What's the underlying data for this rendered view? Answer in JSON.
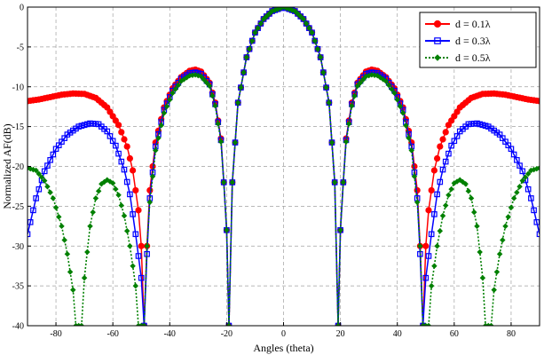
{
  "chart_data": {
    "type": "line",
    "xlabel": "Angles (theta)",
    "ylabel": "Normalized AF(dB)",
    "xlim": [
      -90,
      90
    ],
    "ylim": [
      -40,
      0
    ],
    "xticks": [
      -80,
      -60,
      -40,
      -20,
      0,
      20,
      40,
      60,
      80
    ],
    "yticks": [
      0,
      -5,
      -10,
      -15,
      -20,
      -25,
      -30,
      -35,
      -40
    ],
    "grid": true,
    "legend_position": "top-right",
    "series": [
      {
        "name": "d = 0.1λ",
        "color": "#ff0000",
        "marker": "filled-circle",
        "line": "solid",
        "points": [
          [
            -90,
            -11.8
          ],
          [
            -86,
            -11.6
          ],
          [
            -82,
            -11.3
          ],
          [
            -78,
            -11.0
          ],
          [
            -74,
            -10.85
          ],
          [
            -70,
            -10.9
          ],
          [
            -66,
            -11.4
          ],
          [
            -62,
            -12.6
          ],
          [
            -58,
            -14.8
          ],
          [
            -55,
            -17.5
          ],
          [
            -53,
            -20.5
          ],
          [
            -51,
            -25.5
          ],
          [
            -50,
            -30
          ],
          [
            -49,
            -40
          ],
          [
            -48,
            -30
          ],
          [
            -47,
            -23
          ],
          [
            -45,
            -17
          ],
          [
            -42,
            -12.6
          ],
          [
            -39,
            -10.2
          ],
          [
            -36,
            -8.8
          ],
          [
            -33,
            -8.0
          ],
          [
            -31,
            -7.85
          ],
          [
            -29,
            -8.1
          ],
          [
            -26,
            -9.5
          ],
          [
            -24,
            -12.0
          ],
          [
            -22,
            -16.5
          ],
          [
            -21,
            -22
          ],
          [
            -20,
            -28
          ],
          [
            -19.2,
            -40
          ],
          [
            -18,
            -22
          ],
          [
            -16,
            -12
          ],
          [
            -13,
            -6.3
          ],
          [
            -10,
            -3.2
          ],
          [
            -7,
            -1.5
          ],
          [
            -4,
            -0.5
          ],
          [
            0,
            0
          ],
          [
            4,
            -0.5
          ],
          [
            7,
            -1.5
          ],
          [
            10,
            -3.2
          ],
          [
            13,
            -6.3
          ],
          [
            16,
            -12
          ],
          [
            18,
            -22
          ],
          [
            19.2,
            -40
          ],
          [
            20,
            -28
          ],
          [
            21,
            -22
          ],
          [
            22,
            -16.5
          ],
          [
            24,
            -12.0
          ],
          [
            26,
            -9.5
          ],
          [
            29,
            -8.1
          ],
          [
            31,
            -7.85
          ],
          [
            33,
            -8.0
          ],
          [
            36,
            -8.8
          ],
          [
            39,
            -10.2
          ],
          [
            42,
            -12.6
          ],
          [
            45,
            -17
          ],
          [
            47,
            -23
          ],
          [
            48,
            -30
          ],
          [
            49,
            -40
          ],
          [
            50,
            -30
          ],
          [
            51,
            -25.5
          ],
          [
            53,
            -20.5
          ],
          [
            55,
            -17.5
          ],
          [
            58,
            -14.8
          ],
          [
            62,
            -12.6
          ],
          [
            66,
            -11.4
          ],
          [
            70,
            -10.9
          ],
          [
            74,
            -10.85
          ],
          [
            78,
            -11.0
          ],
          [
            82,
            -11.3
          ],
          [
            86,
            -11.6
          ],
          [
            90,
            -11.8
          ]
        ]
      },
      {
        "name": "d = 0.3λ",
        "color": "#0000ff",
        "marker": "open-square",
        "line": "solid",
        "points": [
          [
            -90,
            -28.5
          ],
          [
            -87,
            -24
          ],
          [
            -84,
            -20.6
          ],
          [
            -80,
            -17.8
          ],
          [
            -76,
            -16.0
          ],
          [
            -72,
            -15.0
          ],
          [
            -68,
            -14.6
          ],
          [
            -65,
            -14.7
          ],
          [
            -62,
            -15.6
          ],
          [
            -59,
            -17.4
          ],
          [
            -56,
            -20.4
          ],
          [
            -54,
            -23.5
          ],
          [
            -52,
            -28.5
          ],
          [
            -50,
            -34
          ],
          [
            -49,
            -40
          ],
          [
            -48,
            -31
          ],
          [
            -47,
            -24
          ],
          [
            -45,
            -17.5
          ],
          [
            -42,
            -12.9
          ],
          [
            -39,
            -10.5
          ],
          [
            -36,
            -9.0
          ],
          [
            -33,
            -8.3
          ],
          [
            -31,
            -8.2
          ],
          [
            -29,
            -8.4
          ],
          [
            -26,
            -9.7
          ],
          [
            -24,
            -12.2
          ],
          [
            -22,
            -16.7
          ],
          [
            -21,
            -22
          ],
          [
            -20,
            -28
          ],
          [
            -19.2,
            -40
          ],
          [
            -18,
            -22
          ],
          [
            -16,
            -12
          ],
          [
            -13,
            -6.3
          ],
          [
            -10,
            -3.2
          ],
          [
            -7,
            -1.5
          ],
          [
            -4,
            -0.5
          ],
          [
            0,
            0
          ],
          [
            4,
            -0.5
          ],
          [
            7,
            -1.5
          ],
          [
            10,
            -3.2
          ],
          [
            13,
            -6.3
          ],
          [
            16,
            -12
          ],
          [
            18,
            -22
          ],
          [
            19.2,
            -40
          ],
          [
            20,
            -28
          ],
          [
            21,
            -22
          ],
          [
            22,
            -16.7
          ],
          [
            24,
            -12.2
          ],
          [
            26,
            -9.7
          ],
          [
            29,
            -8.4
          ],
          [
            31,
            -8.2
          ],
          [
            33,
            -8.3
          ],
          [
            36,
            -9.0
          ],
          [
            39,
            -10.5
          ],
          [
            42,
            -12.9
          ],
          [
            45,
            -17.5
          ],
          [
            47,
            -24
          ],
          [
            48,
            -31
          ],
          [
            49,
            -40
          ],
          [
            50,
            -34
          ],
          [
            52,
            -28.5
          ],
          [
            54,
            -23.5
          ],
          [
            56,
            -20.4
          ],
          [
            59,
            -17.4
          ],
          [
            62,
            -15.6
          ],
          [
            65,
            -14.7
          ],
          [
            68,
            -14.6
          ],
          [
            72,
            -15.0
          ],
          [
            76,
            -16.0
          ],
          [
            80,
            -17.8
          ],
          [
            84,
            -20.6
          ],
          [
            87,
            -24
          ],
          [
            90,
            -28.5
          ]
        ]
      },
      {
        "name": "d = 0.5λ",
        "color": "#008000",
        "marker": "filled-diamond",
        "line": "dotted",
        "points": [
          [
            -90,
            -20.2
          ],
          [
            -87,
            -20.5
          ],
          [
            -84,
            -21.8
          ],
          [
            -81,
            -24
          ],
          [
            -78,
            -27.5
          ],
          [
            -76,
            -31
          ],
          [
            -74,
            -35.5
          ],
          [
            -73,
            -40
          ],
          [
            -71,
            -40
          ],
          [
            -70,
            -34
          ],
          [
            -68,
            -27.5
          ],
          [
            -66,
            -24
          ],
          [
            -64,
            -22.2
          ],
          [
            -62,
            -21.7
          ],
          [
            -60,
            -22.1
          ],
          [
            -58,
            -23.6
          ],
          [
            -56,
            -26.2
          ],
          [
            -54,
            -30
          ],
          [
            -52,
            -35
          ],
          [
            -51,
            -40
          ],
          [
            -49,
            -40
          ],
          [
            -48,
            -30
          ],
          [
            -47,
            -24.5
          ],
          [
            -45,
            -18
          ],
          [
            -42,
            -13.3
          ],
          [
            -39,
            -10.8
          ],
          [
            -36,
            -9.3
          ],
          [
            -33,
            -8.6
          ],
          [
            -31,
            -8.5
          ],
          [
            -29,
            -8.7
          ],
          [
            -26,
            -9.9
          ],
          [
            -24,
            -12.4
          ],
          [
            -22,
            -16.9
          ],
          [
            -21,
            -22
          ],
          [
            -20,
            -28
          ],
          [
            -19.2,
            -40
          ],
          [
            -18,
            -22
          ],
          [
            -16,
            -12
          ],
          [
            -13,
            -6.3
          ],
          [
            -10,
            -3.2
          ],
          [
            -7,
            -1.5
          ],
          [
            -4,
            -0.5
          ],
          [
            0,
            0
          ],
          [
            4,
            -0.5
          ],
          [
            7,
            -1.5
          ],
          [
            10,
            -3.2
          ],
          [
            13,
            -6.3
          ],
          [
            16,
            -12
          ],
          [
            18,
            -22
          ],
          [
            19.2,
            -40
          ],
          [
            20,
            -28
          ],
          [
            21,
            -22
          ],
          [
            22,
            -16.9
          ],
          [
            24,
            -12.4
          ],
          [
            26,
            -9.9
          ],
          [
            29,
            -8.7
          ],
          [
            31,
            -8.5
          ],
          [
            33,
            -8.6
          ],
          [
            36,
            -9.3
          ],
          [
            39,
            -10.8
          ],
          [
            42,
            -13.3
          ],
          [
            45,
            -18
          ],
          [
            47,
            -24.5
          ],
          [
            48,
            -30
          ],
          [
            49,
            -40
          ],
          [
            51,
            -40
          ],
          [
            52,
            -35
          ],
          [
            54,
            -30
          ],
          [
            56,
            -26.2
          ],
          [
            58,
            -23.6
          ],
          [
            60,
            -22.1
          ],
          [
            62,
            -21.7
          ],
          [
            64,
            -22.2
          ],
          [
            66,
            -24
          ],
          [
            68,
            -27.5
          ],
          [
            70,
            -34
          ],
          [
            71,
            -40
          ],
          [
            73,
            -40
          ],
          [
            74,
            -35.5
          ],
          [
            76,
            -31
          ],
          [
            78,
            -27.5
          ],
          [
            81,
            -24
          ],
          [
            84,
            -21.8
          ],
          [
            87,
            -20.5
          ],
          [
            90,
            -20.2
          ]
        ]
      }
    ]
  }
}
